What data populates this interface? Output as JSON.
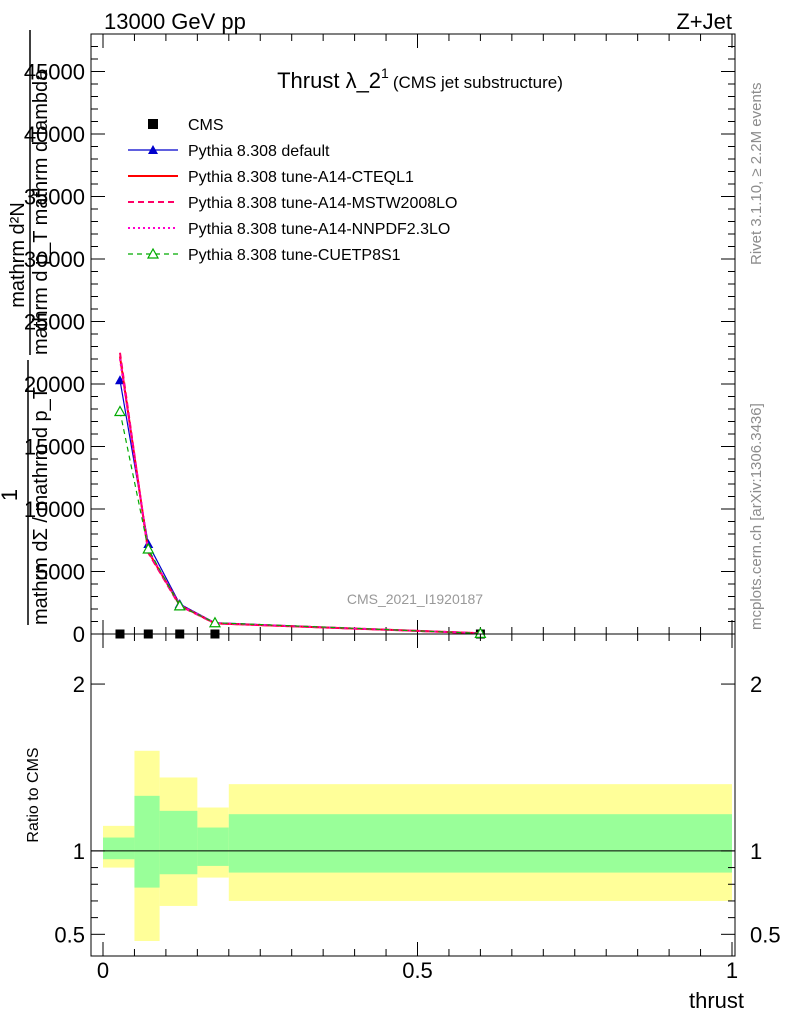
{
  "header": {
    "left": "13000 GeV pp",
    "right": "Z+Jet"
  },
  "side_labels": {
    "rivet": "Rivet 3.1.10, ≥ 2.2M events",
    "mcplots": "mcplots.cern.ch [arXiv:1306.3436]"
  },
  "watermark": "CMS_2021_I1920187",
  "colors": {
    "data": "#000000",
    "default": "#0000cc",
    "cteql1": "#ff0000",
    "mstw": "#ff0066",
    "nnpdf": "#ff00cc",
    "cuetp8s1": "#00aa00",
    "band_inner": "#99ff99",
    "band_outer": "#ffff99"
  },
  "chart_data": [
    {
      "type": "line",
      "title": "Thrust λ_2",
      "title_sup": "1",
      "title_suffix": "(CMS jet substructure)",
      "ylabel": {
        "numerator": "1",
        "denominator": "mathrm dΣ / mathrm d p_T",
        "right_num": "mathrm d²N",
        "right_den": "mathrm d p_T mathrm d lambda"
      },
      "ylabel_raw": "1 / mathrm d N / mathrm d p_T mathrm d p_T mathrm d lambda mathrm d²N",
      "xlim": [
        0,
        1
      ],
      "ylim": [
        0,
        48000
      ],
      "yticks": [
        0,
        5000,
        10000,
        15000,
        20000,
        25000,
        30000,
        35000,
        40000,
        45000
      ],
      "ytick_labels": [
        "0",
        "5000",
        "10000",
        "15000",
        "20000",
        "25000",
        "30000",
        "35000",
        "40000",
        "45000"
      ],
      "legend_position": "top-left",
      "x": [
        0.027,
        0.072,
        0.122,
        0.178,
        0.6
      ],
      "series": [
        {
          "name": "CMS",
          "key": "data",
          "style": "marker-square",
          "values": [
            0,
            0,
            0,
            0,
            0
          ]
        },
        {
          "name": "Pythia 8.308 default",
          "key": "default",
          "style": "solid-triangle",
          "values": [
            20300,
            7200,
            2400,
            900,
            50
          ]
        },
        {
          "name": "Pythia 8.308 tune-A14-CTEQL1",
          "key": "cteql1",
          "style": "solid",
          "values": [
            22200,
            6600,
            2300,
            850,
            60
          ]
        },
        {
          "name": "Pythia 8.308 tune-A14-MSTW2008LO",
          "key": "mstw",
          "style": "dashed",
          "values": [
            22500,
            6500,
            2250,
            850,
            60
          ]
        },
        {
          "name": "Pythia 8.308 tune-A14-NNPDF2.3LO",
          "key": "nnpdf",
          "style": "dotted",
          "values": [
            22000,
            6700,
            2300,
            870,
            60
          ]
        },
        {
          "name": "Pythia 8.308 tune-CUETP8S1",
          "key": "cuetp8s1",
          "style": "dashed-open-triangle",
          "values": [
            17800,
            6800,
            2250,
            900,
            50
          ]
        }
      ]
    },
    {
      "type": "area",
      "ylabel": "Ratio to CMS",
      "xlabel": "thrust",
      "xlim": [
        0,
        1
      ],
      "ylim": [
        0.37,
        2.3
      ],
      "yticks": [
        0.5,
        1,
        2
      ],
      "ytick_labels": [
        "0.5",
        "1",
        "2"
      ],
      "xticks": [
        0,
        0.5,
        1
      ],
      "xtick_labels": [
        "0",
        "0.5",
        "1"
      ],
      "bins": [
        {
          "lo": 0.0,
          "hi": 0.05,
          "inner": [
            0.95,
            1.08
          ],
          "outer": [
            0.9,
            1.15
          ]
        },
        {
          "lo": 0.05,
          "hi": 0.09,
          "inner": [
            0.78,
            1.33
          ],
          "outer": [
            0.46,
            1.6
          ]
        },
        {
          "lo": 0.09,
          "hi": 0.15,
          "inner": [
            0.86,
            1.24
          ],
          "outer": [
            0.67,
            1.44
          ]
        },
        {
          "lo": 0.15,
          "hi": 0.2,
          "inner": [
            0.91,
            1.14
          ],
          "outer": [
            0.84,
            1.26
          ]
        },
        {
          "lo": 0.2,
          "hi": 1.0,
          "inner": [
            0.87,
            1.22
          ],
          "outer": [
            0.7,
            1.4
          ]
        }
      ]
    }
  ]
}
